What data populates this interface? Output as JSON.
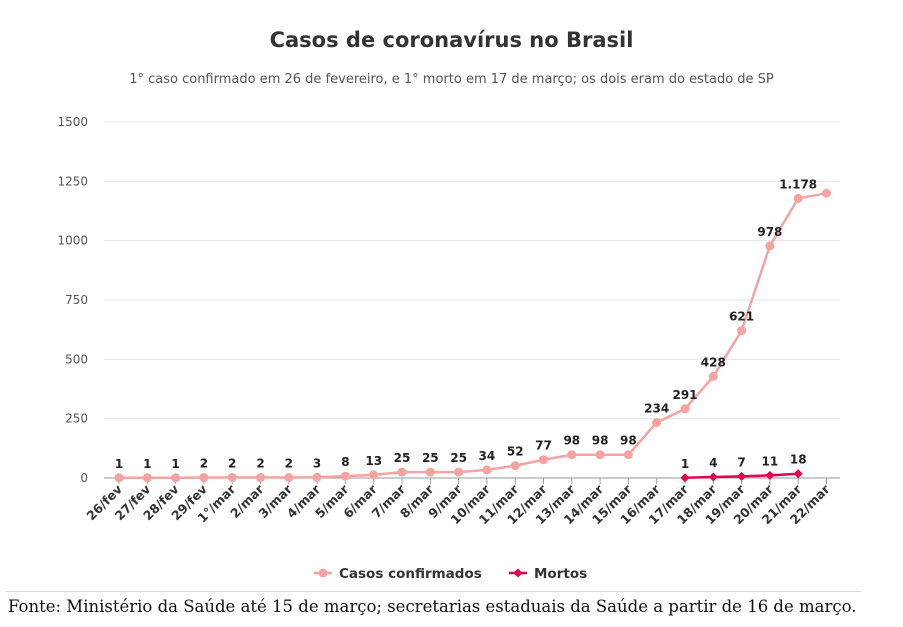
{
  "title": "Casos de coronavírus no Brasil",
  "subtitle": "1° caso confirmado em 26 de fevereiro, e 1° morto em 17 de março; os dois eram do estado de SP",
  "source": "Fonte: Ministério da Saúde até 15 de março; secretarias estaduais da Saúde a partir de 16 de março.",
  "chart_data": {
    "type": "line",
    "title": "Casos de coronavírus no Brasil",
    "subtitle": "1° caso confirmado em 26 de fevereiro, e 1° morto em 17 de março; os dois eram do estado de SP",
    "xlabel": "",
    "ylabel": "",
    "ylim": [
      0,
      1500
    ],
    "yticks": [
      "0",
      "250",
      "500",
      "750",
      "1000",
      "1250",
      "1500"
    ],
    "grid": true,
    "legend_position": "bottom",
    "categories": [
      "26/fev",
      "27/fev",
      "28/fev",
      "29/fev",
      "1°/mar",
      "2/mar",
      "3/mar",
      "4/mar",
      "5/mar",
      "6/mar",
      "7/mar",
      "8/mar",
      "9/mar",
      "10/mar",
      "11/mar",
      "12/mar",
      "13/mar",
      "14/mar",
      "15/mar",
      "16/mar",
      "17/mar",
      "18/mar",
      "19/mar",
      "20/mar",
      "21/mar",
      "22/mar"
    ],
    "series": [
      {
        "name": "Casos confirmados",
        "color": "#f4a3a0",
        "values": [
          1,
          1,
          1,
          2,
          2,
          2,
          2,
          3,
          8,
          13,
          25,
          25,
          25,
          34,
          52,
          77,
          98,
          98,
          98,
          234,
          291,
          428,
          621,
          978,
          1178,
          1200
        ],
        "labels": [
          "1",
          "1",
          "1",
          "2",
          "2",
          "2",
          "2",
          "3",
          "8",
          "13",
          "25",
          "25",
          "25",
          "34",
          "52",
          "77",
          "98",
          "98",
          "98",
          "234",
          "291",
          "428",
          "621",
          "978",
          "1.178",
          null
        ]
      },
      {
        "name": "Mortos",
        "color": "#e2004f",
        "values": [
          null,
          null,
          null,
          null,
          null,
          null,
          null,
          null,
          null,
          null,
          null,
          null,
          null,
          null,
          null,
          null,
          null,
          null,
          null,
          null,
          1,
          4,
          7,
          11,
          18,
          null
        ],
        "labels": [
          null,
          null,
          null,
          null,
          null,
          null,
          null,
          null,
          null,
          null,
          null,
          null,
          null,
          null,
          null,
          null,
          null,
          null,
          null,
          null,
          "1",
          "4",
          "7",
          "11",
          "18",
          null
        ]
      }
    ]
  }
}
